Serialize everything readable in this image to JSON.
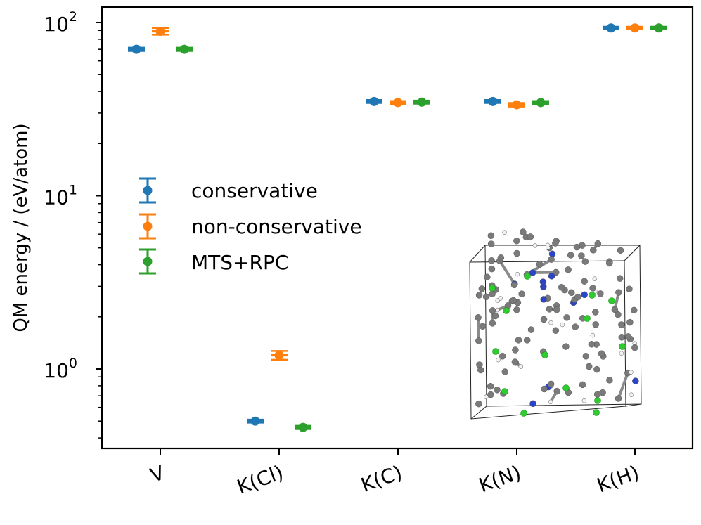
{
  "chart_data": {
    "type": "scatter",
    "yscale": "log",
    "ylabel": "QM energy / (eV/atom)",
    "xlabel": "",
    "categories": [
      "V",
      "K(Cl)",
      "K(C)",
      "K(N)",
      "K(H)"
    ],
    "ylim": [
      0.38,
      120
    ],
    "yticks": [
      {
        "base": "10",
        "exp": "0",
        "value": 1
      },
      {
        "base": "10",
        "exp": "1",
        "value": 10
      },
      {
        "base": "10",
        "exp": "2",
        "value": 100
      }
    ],
    "legend": {
      "placement": "center-left",
      "entries": [
        "conservative",
        "non-conservative",
        "MTS+RPC"
      ]
    },
    "series": [
      {
        "name": "conservative",
        "color": "#1f77b4",
        "offset": -1,
        "values": [
          70,
          0.5,
          35,
          35,
          93
        ],
        "errors": [
          1.5,
          0.01,
          0.7,
          0.7,
          1.5
        ]
      },
      {
        "name": "non-conservative",
        "color": "#ff7f0e",
        "offset": 0,
        "values": [
          89,
          1.2,
          34.5,
          33.5,
          93
        ],
        "errors": [
          4,
          0.07,
          0.7,
          0.8,
          1.5
        ]
      },
      {
        "name": "MTS+RPC",
        "color": "#2ca02c",
        "offset": 1,
        "values": [
          70,
          0.46,
          34.7,
          34.5,
          93
        ],
        "errors": [
          1.5,
          0.01,
          0.7,
          0.7,
          1.5
        ]
      }
    ],
    "inset": "molecular structure snapshot in a simulation box"
  }
}
